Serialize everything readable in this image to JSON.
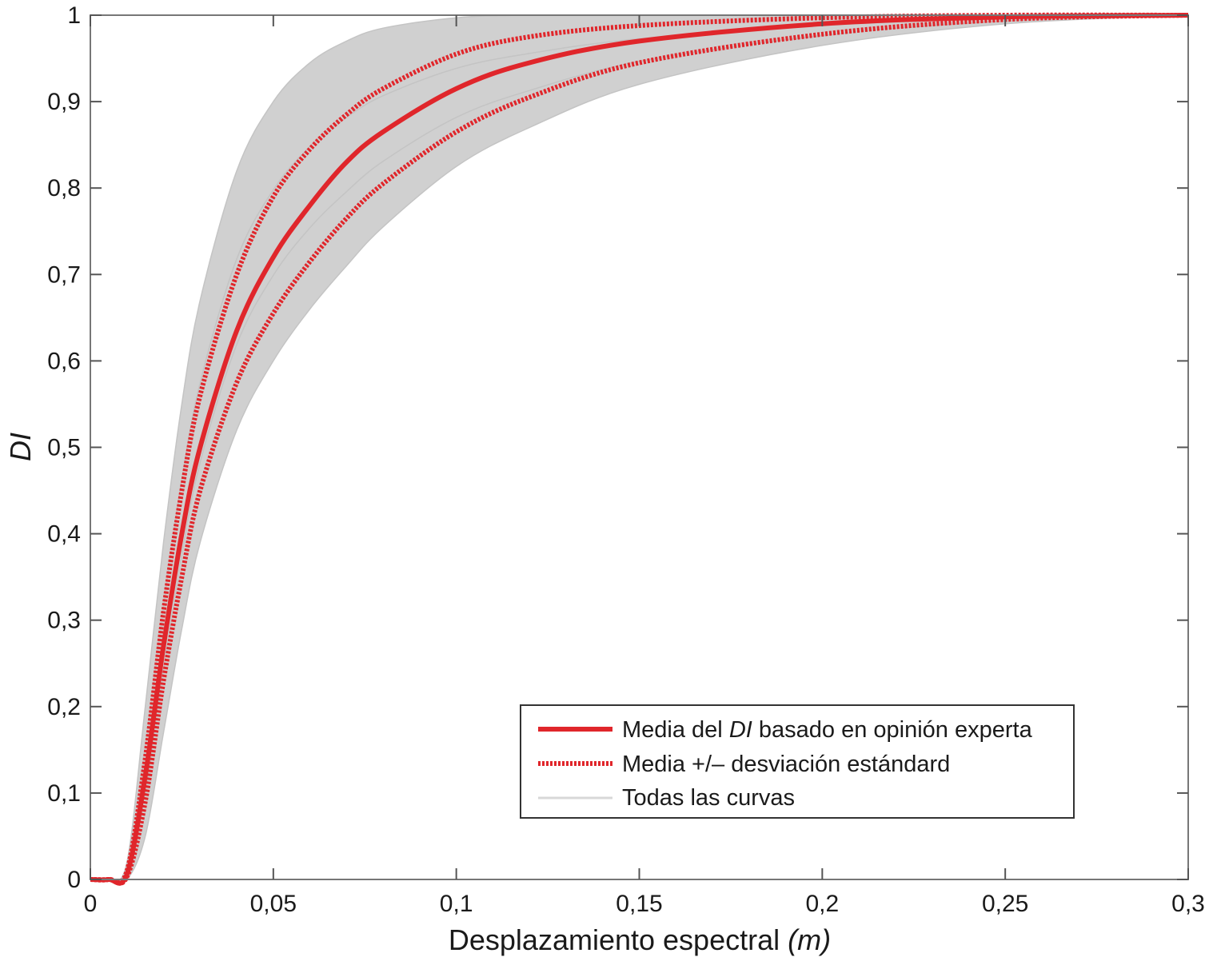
{
  "chart_data": {
    "type": "line",
    "xlabel": "Desplazamiento espectral",
    "xlabel_unit": "(m)",
    "ylabel": "DI",
    "xlim": [
      0,
      0.3
    ],
    "ylim": [
      0,
      1
    ],
    "x_ticks": [
      0,
      0.05,
      0.1,
      0.15,
      0.2,
      0.25,
      0.3
    ],
    "x_tick_labels": [
      "0",
      "0,05",
      "0,1",
      "0,15",
      "0,2",
      "0,25",
      "0,3"
    ],
    "y_ticks": [
      0,
      0.1,
      0.2,
      0.3,
      0.4,
      0.5,
      0.6,
      0.7,
      0.8,
      0.9,
      1
    ],
    "y_tick_labels": [
      "0",
      "0,1",
      "0,2",
      "0,3",
      "0,4",
      "0,5",
      "0,6",
      "0,7",
      "0,8",
      "0,9",
      "1"
    ],
    "grid": false,
    "legend_position": "bottom-right",
    "x": [
      0,
      0.005,
      0.01,
      0.015,
      0.02,
      0.025,
      0.03,
      0.04,
      0.05,
      0.06,
      0.07,
      0.08,
      0.1,
      0.12,
      0.15,
      0.2,
      0.25,
      0.3
    ],
    "series": [
      {
        "name": "Media del DI basado en opinión experta",
        "label_parts": [
          "Media del ",
          "DI",
          " basado en opinión experta"
        ],
        "style": "solid",
        "color": "#e0262b",
        "values": [
          0,
          0,
          0.006,
          0.12,
          0.27,
          0.4,
          0.5,
          0.635,
          0.72,
          0.78,
          0.83,
          0.865,
          0.915,
          0.945,
          0.97,
          0.99,
          0.998,
          1.0
        ]
      },
      {
        "name": "Media +/– desviación estándard",
        "style": "dotted",
        "color": "#e0262b",
        "values": [
          0,
          0,
          0.01,
          0.14,
          0.31,
          0.45,
          0.56,
          0.7,
          0.79,
          0.845,
          0.885,
          0.915,
          0.955,
          0.975,
          0.988,
          0.997,
          1.0,
          1.0
        ]
      },
      {
        "name": "Media +/– desviación estándard",
        "style": "dotted",
        "color": "#e0262b",
        "show_in_legend": false,
        "values": [
          0,
          0,
          0.003,
          0.09,
          0.23,
          0.35,
          0.45,
          0.575,
          0.655,
          0.715,
          0.765,
          0.805,
          0.865,
          0.905,
          0.945,
          0.978,
          0.995,
          1.0
        ]
      }
    ],
    "band": {
      "name": "Todas las curvas",
      "color": "#d0d0d0",
      "upper": [
        0,
        0,
        0.02,
        0.2,
        0.39,
        0.55,
        0.67,
        0.82,
        0.9,
        0.945,
        0.97,
        0.985,
        0.997,
        1.0,
        1.0,
        1.0,
        1.0,
        1.0
      ],
      "lower": [
        0,
        0,
        0.0,
        0.05,
        0.17,
        0.29,
        0.39,
        0.52,
        0.6,
        0.66,
        0.71,
        0.755,
        0.825,
        0.87,
        0.92,
        0.965,
        0.99,
        1.0
      ]
    }
  }
}
